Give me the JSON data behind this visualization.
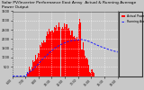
{
  "title": "Solar PV/Inverter Performance East Array  Actual & Running Average  Power Output",
  "title_fontsize": 3.2,
  "bg_color": "#c8c8c8",
  "plot_bg_color": "#c8c8c8",
  "bar_color": "#ff0000",
  "avg_line_color": "#1a1aff",
  "grid_color": "#ffffff",
  "ylim": [
    0,
    3500
  ],
  "ytick_values": [
    500,
    1000,
    1500,
    2000,
    2500,
    3000,
    3500
  ],
  "n_points": 144,
  "legend_bar_label": "Actual Power",
  "legend_line_label": "Running Average"
}
